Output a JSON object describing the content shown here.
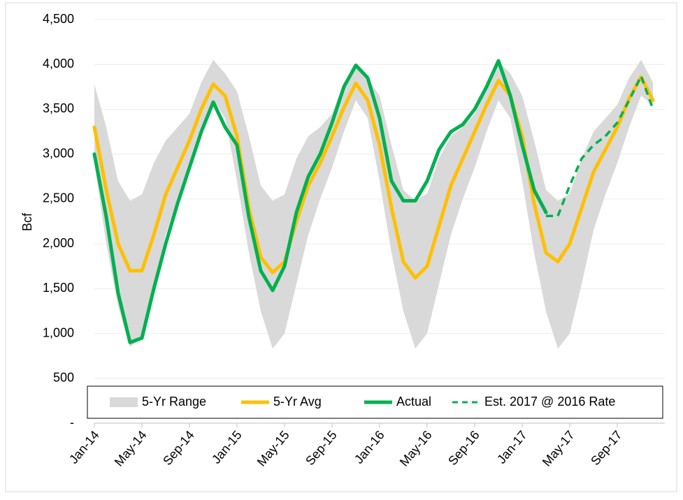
{
  "chart_data": {
    "type": "line",
    "y_label": "Bcf",
    "categories": [
      "Jan-14",
      null,
      null,
      null,
      "May-14",
      null,
      null,
      null,
      "Sep-14",
      null,
      null,
      null,
      "Jan-15",
      null,
      null,
      null,
      "May-15",
      null,
      null,
      null,
      "Sep-15",
      null,
      null,
      null,
      "Jan-16",
      null,
      null,
      null,
      "May-16",
      null,
      null,
      null,
      "Sep-16",
      null,
      null,
      null,
      "Jan-17",
      null,
      null,
      null,
      "May-17",
      null,
      null,
      null,
      "Sep-17",
      null,
      null,
      null
    ],
    "series": [
      {
        "name": "5-Yr Range",
        "color": "#d9d9d9",
        "kind": "range",
        "high": [
          3780,
          3300,
          2700,
          2480,
          2550,
          2900,
          3150,
          3300,
          3450,
          3800,
          4050,
          3900,
          3700,
          3200,
          2650,
          2480,
          2550,
          2950,
          3200,
          3300,
          3450,
          3800,
          4000,
          3850,
          3650,
          3100,
          2600,
          2480,
          2560,
          2950,
          3200,
          3300,
          3450,
          3800,
          4030,
          3900,
          3650,
          3150,
          2600,
          2480,
          2560,
          2950,
          3250,
          3400,
          3550,
          3850,
          4050,
          3800
        ],
        "low": [
          2900,
          2000,
          1300,
          850,
          950,
          1500,
          2100,
          2500,
          2850,
          3250,
          3600,
          3400,
          2700,
          1900,
          1250,
          830,
          1000,
          1550,
          2100,
          2500,
          2850,
          3250,
          3600,
          3400,
          2700,
          1900,
          1250,
          830,
          1000,
          1550,
          2100,
          2500,
          2850,
          3250,
          3600,
          3400,
          2700,
          1900,
          1250,
          830,
          1000,
          1550,
          2150,
          2550,
          2900,
          3300,
          3650,
          3550
        ]
      },
      {
        "name": "5-Yr Avg",
        "color": "#ffc000",
        "kind": "line",
        "values": [
          3300,
          2600,
          2000,
          1700,
          1700,
          2100,
          2550,
          2850,
          3150,
          3500,
          3780,
          3650,
          3200,
          2400,
          1850,
          1680,
          1800,
          2250,
          2650,
          2900,
          3200,
          3520,
          3790,
          3600,
          3100,
          2400,
          1800,
          1620,
          1750,
          2200,
          2650,
          2950,
          3250,
          3550,
          3820,
          3650,
          3200,
          2450,
          1900,
          1800,
          2000,
          2400,
          2800,
          3050,
          3300,
          3620,
          3860,
          3600
        ]
      },
      {
        "name": "Actual",
        "color": "#00b050",
        "kind": "line",
        "values": [
          3000,
          2300,
          1450,
          900,
          950,
          1500,
          2000,
          2450,
          2850,
          3250,
          3580,
          3300,
          3100,
          2300,
          1700,
          1480,
          1750,
          2350,
          2750,
          3000,
          3350,
          3750,
          3990,
          3850,
          3400,
          2700,
          2480,
          2480,
          2700,
          3050,
          3250,
          3330,
          3500,
          3750,
          4040,
          3650,
          3100,
          2600,
          2350,
          null,
          null,
          null,
          null,
          null,
          null,
          null,
          null,
          null
        ]
      },
      {
        "name": "Est. 2017 @ 2016 Rate",
        "color": "#00b050",
        "kind": "dashed",
        "values": [
          null,
          null,
          null,
          null,
          null,
          null,
          null,
          null,
          null,
          null,
          null,
          null,
          null,
          null,
          null,
          null,
          null,
          null,
          null,
          null,
          null,
          null,
          null,
          null,
          null,
          null,
          null,
          null,
          null,
          null,
          null,
          null,
          null,
          null,
          null,
          null,
          null,
          null,
          2310,
          2310,
          2650,
          2950,
          3100,
          3200,
          3350,
          3600,
          3870,
          3500
        ]
      }
    ],
    "ylim": [
      0,
      4500
    ],
    "yticks": [
      {
        "value": 0,
        "label": "-"
      },
      500,
      {
        "value": 1000,
        "label": "1,000"
      },
      {
        "value": 1500,
        "label": "1,500"
      },
      {
        "value": 2000,
        "label": "2,000"
      },
      {
        "value": 2500,
        "label": "2,500"
      },
      {
        "value": 3000,
        "label": "3,000"
      },
      {
        "value": 3500,
        "label": "3,500"
      },
      {
        "value": 4000,
        "label": "4,000"
      },
      {
        "value": 4500,
        "label": "4,500"
      }
    ],
    "grid": true
  }
}
